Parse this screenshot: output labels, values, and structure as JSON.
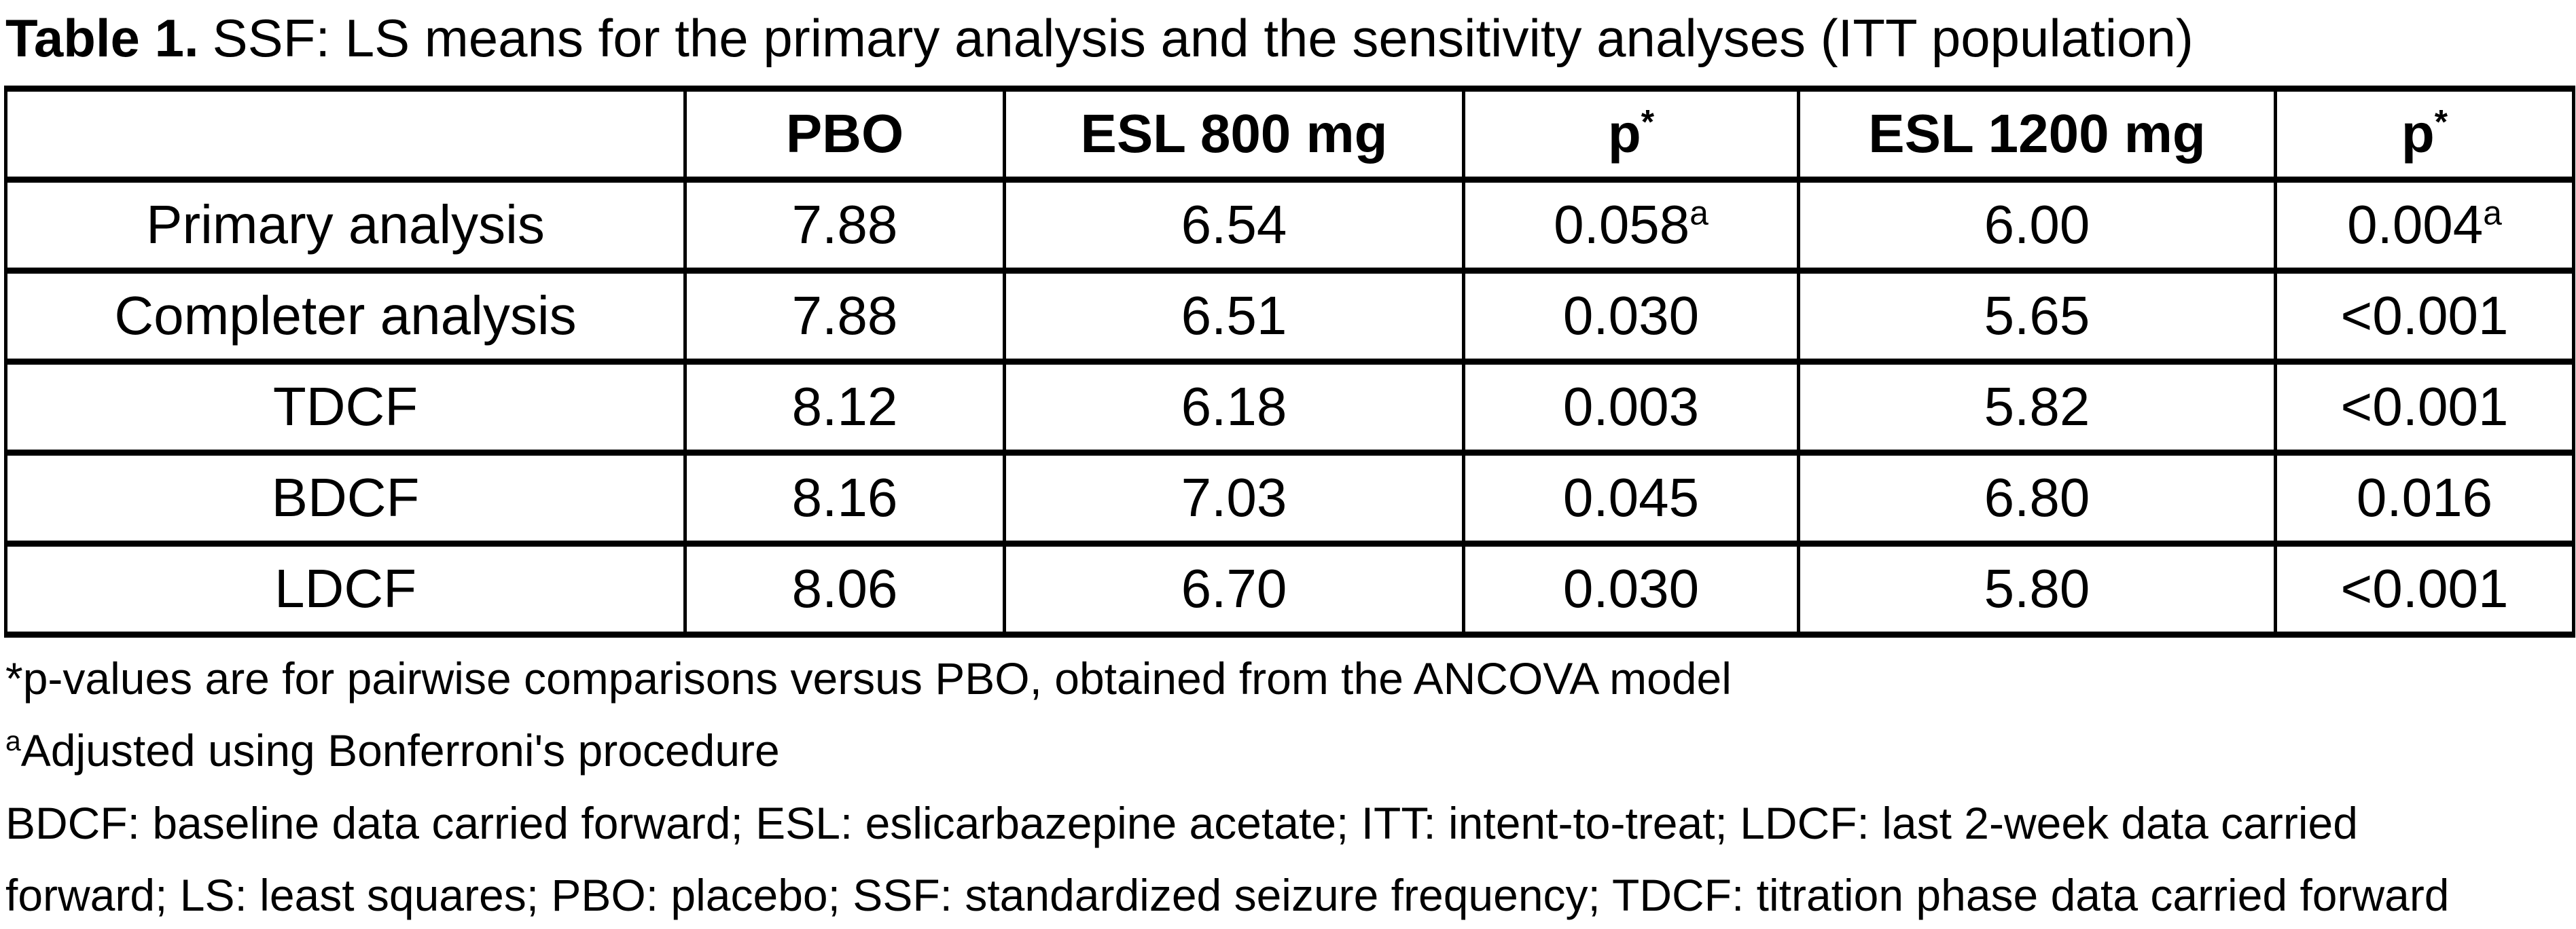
{
  "title": {
    "label": "Table 1.",
    "text": "SSF: LS means for the primary analysis and the sensitivity analyses (ITT population)"
  },
  "table": {
    "columns": [
      {
        "label": ""
      },
      {
        "label": "PBO"
      },
      {
        "label": "ESL 800 mg"
      },
      {
        "label": "p",
        "sup": "*"
      },
      {
        "label": "ESL 1200 mg"
      },
      {
        "label": "p",
        "sup": "*"
      }
    ],
    "rows": [
      {
        "label": "Primary analysis",
        "cells": [
          {
            "text": "7.88"
          },
          {
            "text": "6.54"
          },
          {
            "text": "0.058",
            "sup": "a"
          },
          {
            "text": "6.00"
          },
          {
            "text": "0.004",
            "sup": "a"
          }
        ]
      },
      {
        "label": "Completer analysis",
        "cells": [
          {
            "text": "7.88"
          },
          {
            "text": "6.51"
          },
          {
            "text": "0.030"
          },
          {
            "text": "5.65"
          },
          {
            "text": "<0.001"
          }
        ]
      },
      {
        "label": "TDCF",
        "cells": [
          {
            "text": "8.12"
          },
          {
            "text": "6.18"
          },
          {
            "text": "0.003"
          },
          {
            "text": "5.82"
          },
          {
            "text": "<0.001"
          }
        ]
      },
      {
        "label": "BDCF",
        "cells": [
          {
            "text": "8.16"
          },
          {
            "text": "7.03"
          },
          {
            "text": "0.045"
          },
          {
            "text": "6.80"
          },
          {
            "text": "0.016"
          }
        ]
      },
      {
        "label": "LDCF",
        "cells": [
          {
            "text": "8.06"
          },
          {
            "text": "6.70"
          },
          {
            "text": "0.030"
          },
          {
            "text": "5.80"
          },
          {
            "text": "<0.001"
          }
        ]
      }
    ]
  },
  "footnotes": [
    {
      "prefix": "*",
      "superscript": false,
      "text": "p-values are for pairwise comparisons versus PBO, obtained from the ANCOVA model"
    },
    {
      "prefix": "a",
      "superscript": true,
      "text": "Adjusted using Bonferroni's procedure"
    },
    {
      "text": "BDCF: baseline data carried forward; ESL: eslicarbazepine acetate; ITT: intent-to-treat; LDCF: last 2-week data carried"
    },
    {
      "text": "forward; LS: least squares; PBO: placebo; SSF: standardized seizure frequency; TDCF: titration phase data carried forward"
    }
  ]
}
